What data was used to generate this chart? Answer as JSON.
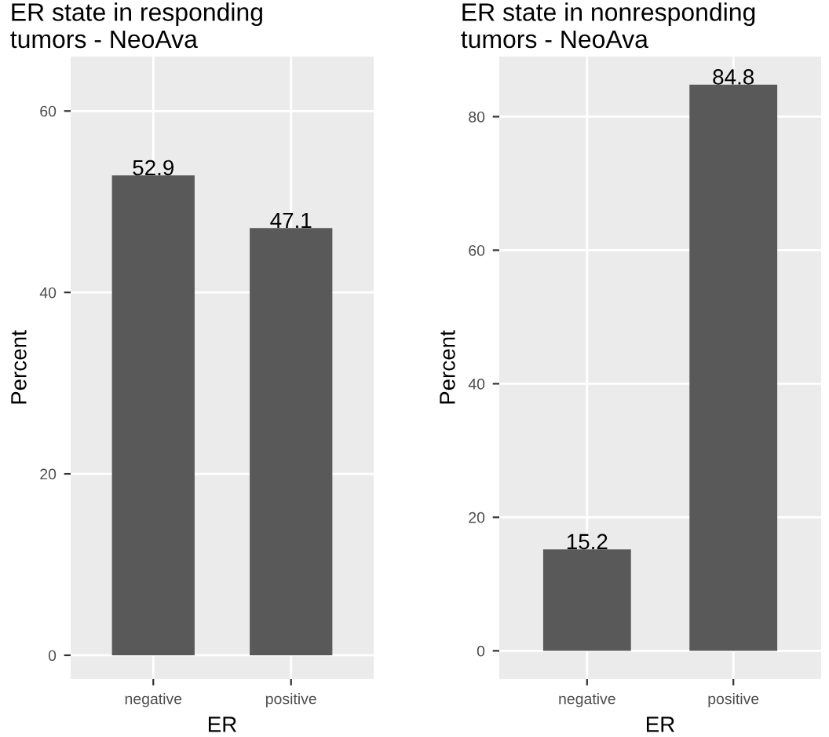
{
  "chart_data": [
    {
      "type": "bar",
      "title": "ER state in responding\ntumors - NeoAva",
      "xlabel": "ER",
      "ylabel": "Percent",
      "categories": [
        "negative",
        "positive"
      ],
      "values": [
        52.9,
        47.1
      ],
      "color": "#595959",
      "ylim": [
        -2.6,
        66
      ],
      "yticks": [
        0,
        20,
        40,
        60
      ],
      "grid": true,
      "data_labels": true
    },
    {
      "type": "bar",
      "title": "ER state in nonresponding\ntumors - NeoAva",
      "xlabel": "ER",
      "ylabel": "Percent",
      "categories": [
        "negative",
        "positive"
      ],
      "values": [
        15.2,
        84.8
      ],
      "color": "#595959",
      "ylim": [
        -4.2,
        89
      ],
      "yticks": [
        0,
        20,
        40,
        60,
        80
      ],
      "grid": true,
      "data_labels": true
    }
  ]
}
